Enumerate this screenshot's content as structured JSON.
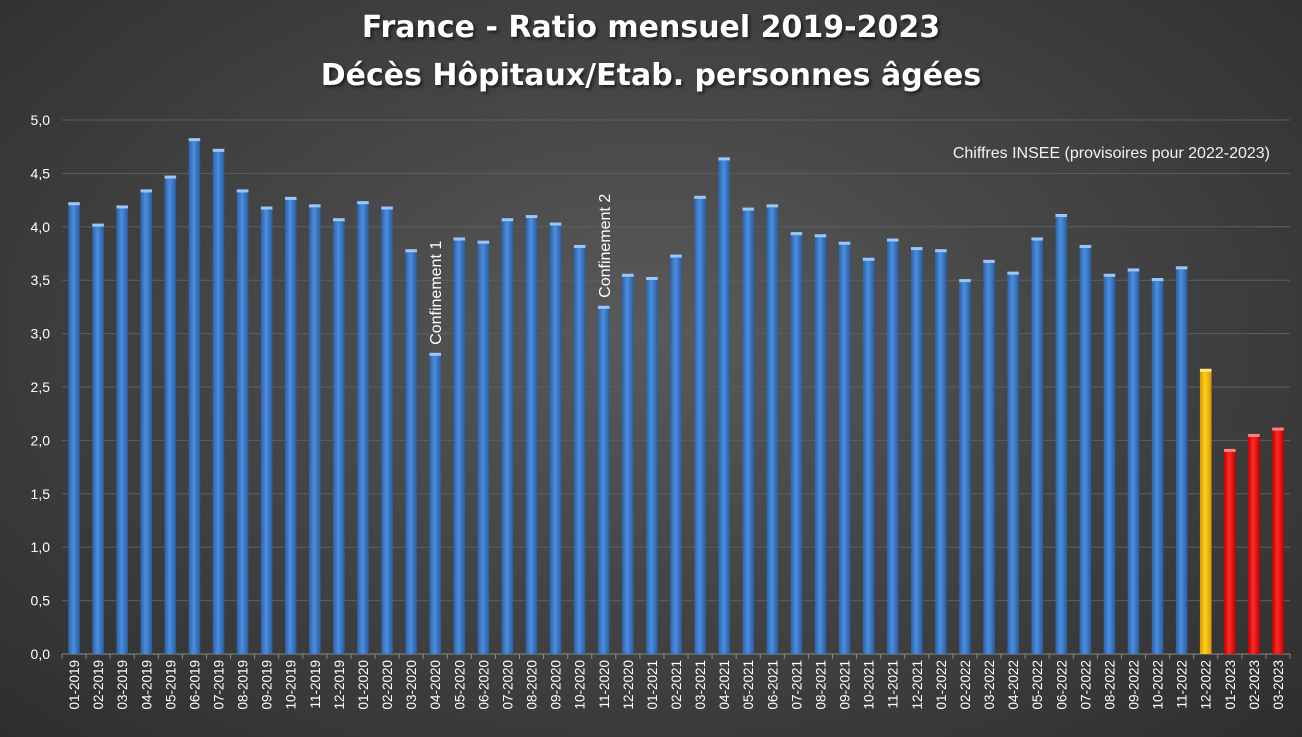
{
  "title": {
    "line1": "France - Ratio mensuel 2019-2023",
    "line2": "Décès Hôpitaux/Etab. personnes âgées"
  },
  "note": "Chiffres INSEE (provisoires pour 2022-2023)",
  "colors": {
    "background": "#474747",
    "bar_default": "#3a78c8",
    "bar_highlight_yellow": "#ffc000",
    "bar_highlight_red": "#ff1a1a",
    "grid": "#5e5e5e",
    "text": "#ffffff"
  },
  "chart_data": {
    "type": "bar",
    "title": "France - Ratio mensuel 2019-2023 Décès Hôpitaux/Etab. personnes âgées",
    "xlabel": "",
    "ylabel": "",
    "ylim": [
      0,
      5
    ],
    "yticks": [
      "0,0",
      "0,5",
      "1,0",
      "1,5",
      "2,0",
      "2,5",
      "3,0",
      "3,5",
      "4,0",
      "4,5",
      "5,0"
    ],
    "grid": true,
    "categories": [
      "01-2019",
      "02-2019",
      "03-2019",
      "04-2019",
      "05-2019",
      "06-2019",
      "07-2019",
      "08-2019",
      "09-2019",
      "10-2019",
      "11-2019",
      "12-2019",
      "01-2020",
      "02-2020",
      "03-2020",
      "04-2020",
      "05-2020",
      "06-2020",
      "07-2020",
      "08-2020",
      "09-2020",
      "10-2020",
      "11-2020",
      "12-2020",
      "01-2021",
      "02-2021",
      "03-2021",
      "04-2021",
      "05-2021",
      "06-2021",
      "07-2021",
      "08-2021",
      "09-2021",
      "10-2021",
      "11-2021",
      "12-2021",
      "01-2022",
      "02-2022",
      "03-2022",
      "04-2022",
      "05-2022",
      "06-2022",
      "07-2022",
      "08-2022",
      "09-2022",
      "10-2022",
      "11-2022",
      "12-2022",
      "01-2023",
      "02-2023",
      "03-2023"
    ],
    "values": [
      4.23,
      4.03,
      4.2,
      4.35,
      4.48,
      4.83,
      4.73,
      4.35,
      4.19,
      4.28,
      4.21,
      4.08,
      4.24,
      4.19,
      3.79,
      2.82,
      3.9,
      3.87,
      4.08,
      4.11,
      4.04,
      3.83,
      3.26,
      3.56,
      3.53,
      3.74,
      4.29,
      4.65,
      4.18,
      4.21,
      3.95,
      3.93,
      3.86,
      3.71,
      3.89,
      3.81,
      3.79,
      3.51,
      3.69,
      3.58,
      3.9,
      4.12,
      3.83,
      3.56,
      3.61,
      3.52,
      3.63,
      2.67,
      1.92,
      2.06,
      2.12
    ],
    "bar_colors": {
      "12-2022": "yellow",
      "01-2023": "red",
      "02-2023": "red",
      "03-2023": "red"
    },
    "annotations": [
      {
        "text": "Confinement 1",
        "category": "04-2020"
      },
      {
        "text": "Confinement 2",
        "category": "11-2020"
      }
    ]
  }
}
